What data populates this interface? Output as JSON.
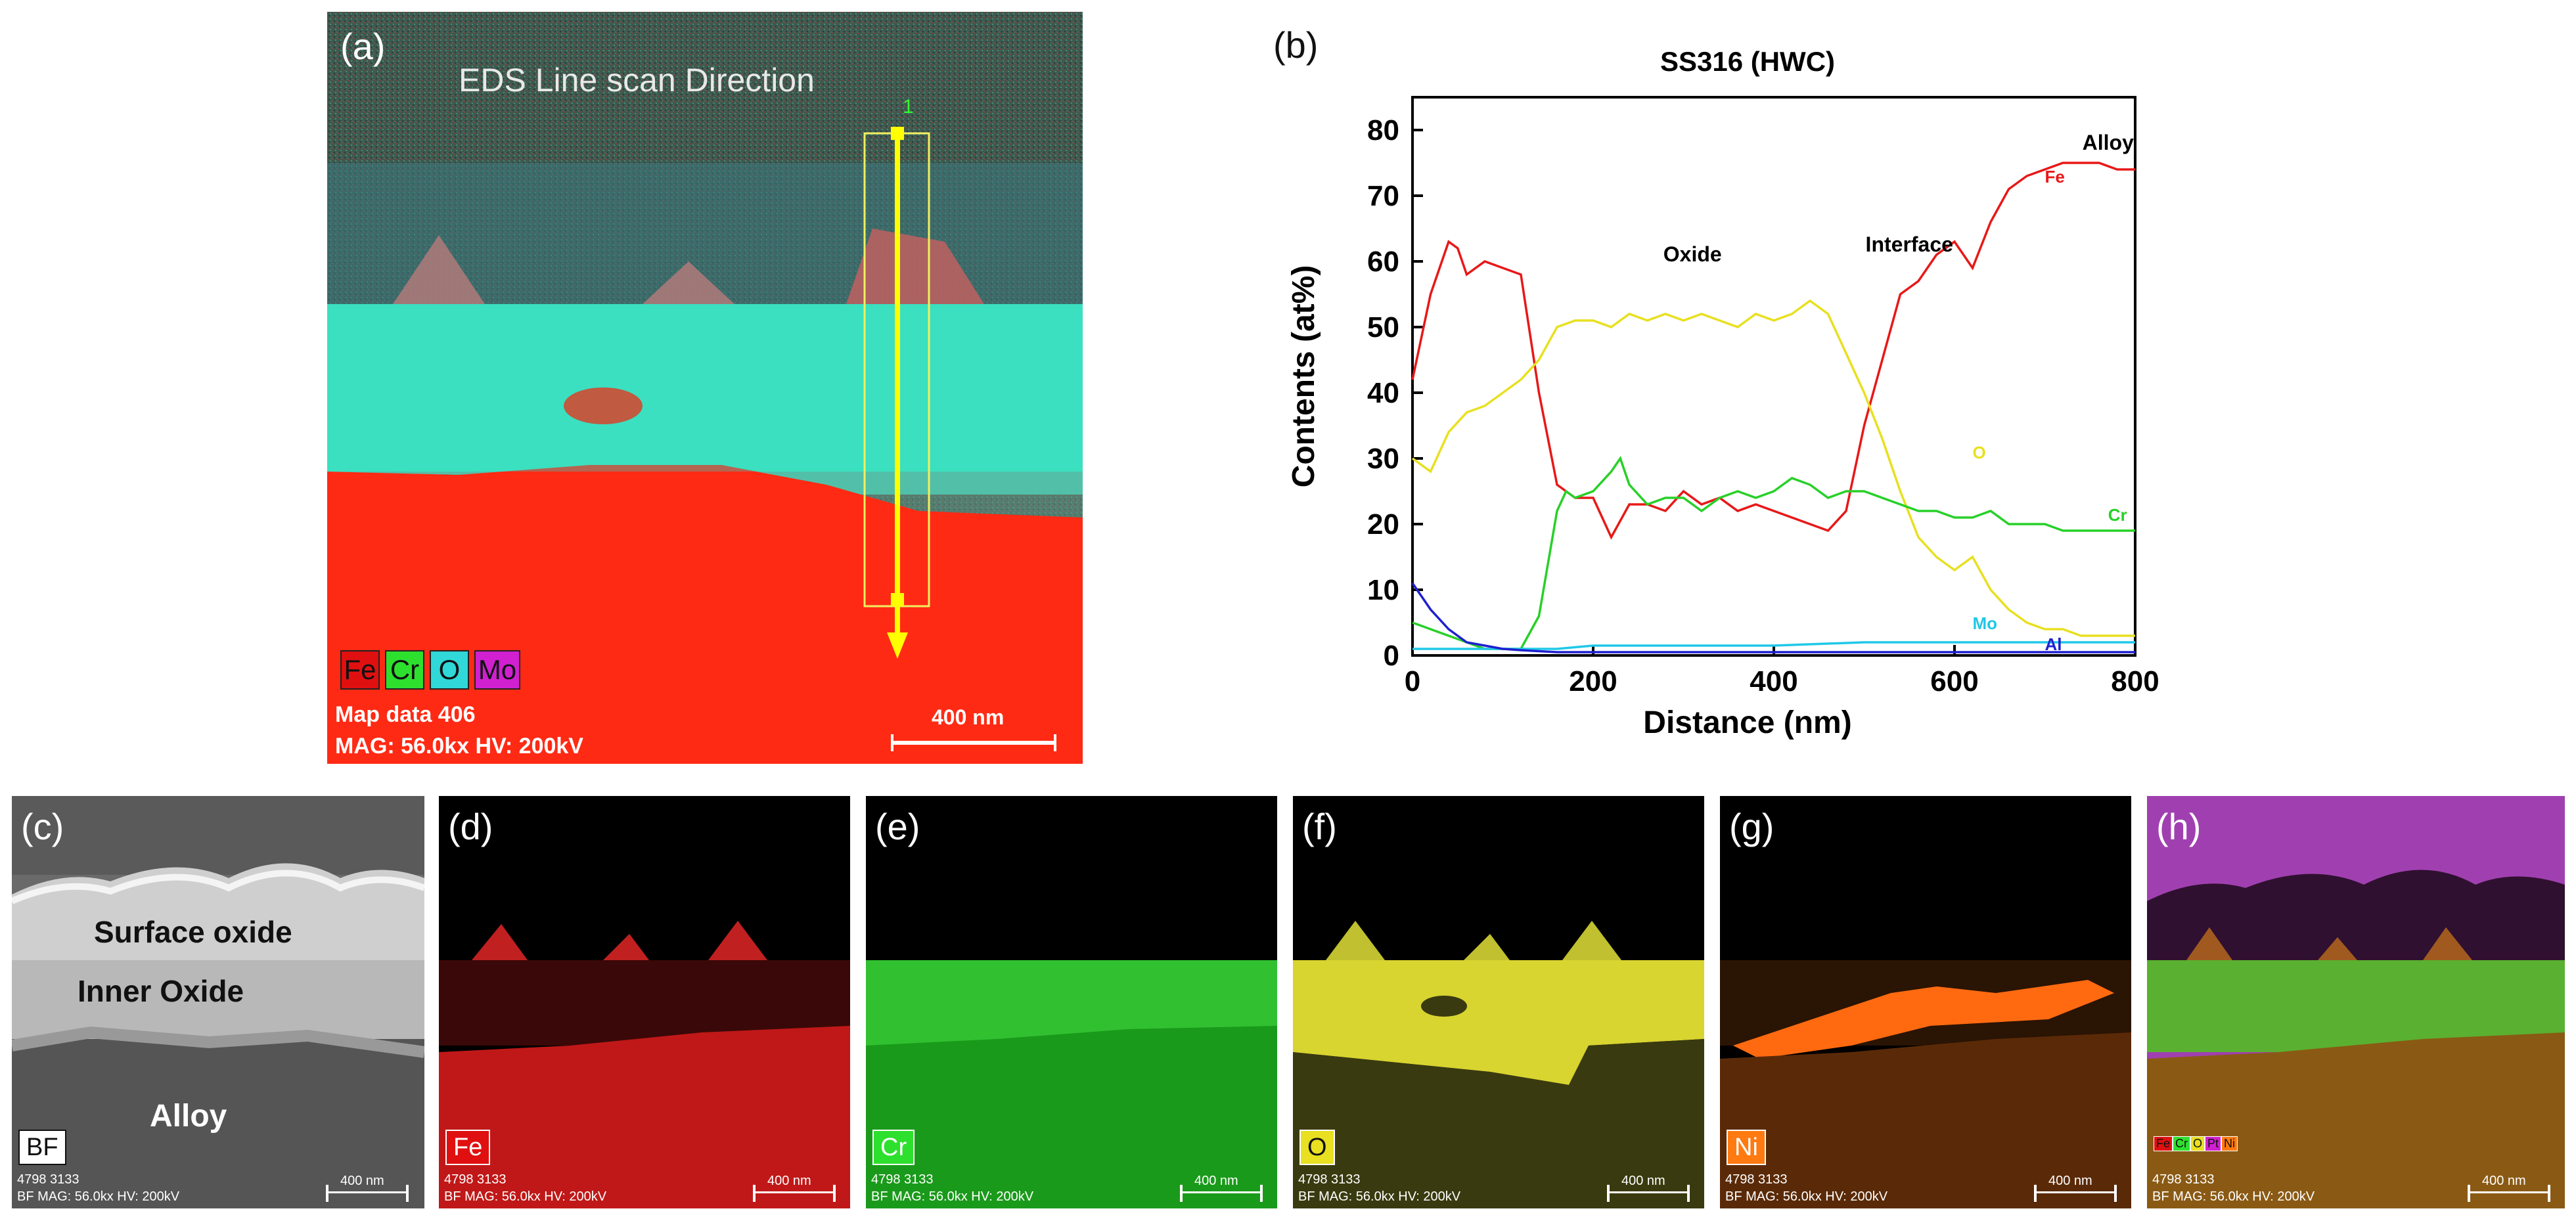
{
  "panel_a": {
    "label": "(a)",
    "title": "EDS Line scan Direction",
    "marker_number": "1",
    "legend": [
      "Fe",
      "Cr",
      "O",
      "Mo"
    ],
    "legend_colors": [
      "#e01010",
      "#2ee02e",
      "#30d8d8",
      "#d020d0"
    ],
    "meta_line1": "Map data 406",
    "meta_line2": "MAG: 56.0kx  HV: 200kV",
    "scale": "400 nm"
  },
  "panel_b": {
    "label": "(b)"
  },
  "chart_data": {
    "type": "line",
    "title": "SS316 (HWC)",
    "xlabel": "Distance (nm)",
    "ylabel": "Contents (at%)",
    "xlim": [
      0,
      800
    ],
    "ylim": [
      0,
      85
    ],
    "xticks": [
      "0",
      "200",
      "400",
      "600",
      "800"
    ],
    "yticks": [
      "0",
      "10",
      "20",
      "30",
      "40",
      "50",
      "60",
      "70",
      "80"
    ],
    "annotations": [
      "Oxide",
      "Interface",
      "Alloy"
    ],
    "series": [
      {
        "name": "Fe",
        "color": "#e81818",
        "x": [
          0,
          20,
          40,
          50,
          60,
          80,
          100,
          120,
          140,
          160,
          180,
          200,
          220,
          240,
          260,
          280,
          300,
          320,
          340,
          360,
          380,
          400,
          420,
          440,
          460,
          480,
          500,
          520,
          540,
          560,
          580,
          600,
          620,
          640,
          660,
          680,
          700,
          720,
          740,
          760,
          780,
          800
        ],
        "y": [
          42,
          55,
          63,
          62,
          58,
          60,
          59,
          58,
          40,
          26,
          24,
          24,
          18,
          23,
          23,
          22,
          25,
          23,
          24,
          22,
          23,
          22,
          21,
          20,
          19,
          22,
          35,
          45,
          55,
          57,
          61,
          63,
          59,
          66,
          71,
          73,
          74,
          75,
          75,
          75,
          74,
          74
        ]
      },
      {
        "name": "O",
        "color": "#e8e020",
        "x": [
          0,
          20,
          40,
          60,
          80,
          100,
          120,
          140,
          160,
          180,
          200,
          220,
          240,
          260,
          280,
          300,
          320,
          340,
          360,
          380,
          400,
          420,
          440,
          460,
          480,
          500,
          520,
          540,
          560,
          580,
          600,
          620,
          640,
          660,
          680,
          700,
          720,
          740,
          760,
          780,
          800
        ],
        "y": [
          30,
          28,
          34,
          37,
          38,
          40,
          42,
          45,
          50,
          51,
          51,
          50,
          52,
          51,
          52,
          51,
          52,
          51,
          50,
          52,
          51,
          52,
          54,
          52,
          46,
          40,
          33,
          25,
          18,
          15,
          13,
          15,
          10,
          7,
          5,
          4,
          4,
          3,
          3,
          3,
          3
        ]
      },
      {
        "name": "Cr",
        "color": "#28d028",
        "x": [
          0,
          20,
          40,
          60,
          80,
          100,
          120,
          140,
          160,
          170,
          180,
          200,
          220,
          230,
          240,
          260,
          280,
          300,
          320,
          340,
          360,
          380,
          400,
          420,
          440,
          460,
          480,
          500,
          520,
          540,
          560,
          580,
          600,
          620,
          640,
          660,
          680,
          700,
          720,
          740,
          760,
          780,
          800
        ],
        "y": [
          5,
          4,
          3,
          2,
          1,
          1,
          1,
          6,
          22,
          25,
          24,
          25,
          28,
          30,
          26,
          23,
          24,
          24,
          22,
          24,
          25,
          24,
          25,
          27,
          26,
          24,
          25,
          25,
          24,
          23,
          22,
          22,
          21,
          21,
          22,
          20,
          20,
          20,
          19,
          19,
          19,
          19,
          19
        ]
      },
      {
        "name": "Mo",
        "color": "#20c8e8",
        "x": [
          0,
          40,
          80,
          120,
          160,
          200,
          300,
          400,
          500,
          600,
          700,
          800
        ],
        "y": [
          1,
          1,
          1,
          1,
          1,
          1.5,
          1.5,
          1.5,
          2,
          2,
          2,
          2
        ]
      },
      {
        "name": "Al",
        "color": "#2020d0",
        "x": [
          0,
          10,
          20,
          40,
          60,
          80,
          100,
          120,
          160,
          200,
          300,
          400,
          500,
          600,
          700,
          800
        ],
        "y": [
          11,
          9,
          7,
          4,
          2,
          1.5,
          1,
          0.8,
          0.5,
          0.5,
          0.5,
          0.5,
          0.5,
          0.5,
          0.5,
          0.5
        ]
      }
    ]
  },
  "panel_c": {
    "label": "(c)",
    "tag": "BF",
    "region_surface": "Surface oxide",
    "region_inner": "Inner Oxide",
    "region_alloy": "Alloy",
    "meta_line1": "4798 3133",
    "meta_line2": "BF  MAG: 56.0kx  HV: 200kV",
    "scale": "400 nm"
  },
  "panel_d": {
    "label": "(d)",
    "tag": "Fe",
    "tag_color": "#e01010",
    "meta_line1": "4798 3133",
    "meta_line2": "BF  MAG: 56.0kx  HV: 200kV",
    "scale": "400 nm"
  },
  "panel_e": {
    "label": "(e)",
    "tag": "Cr",
    "tag_color": "#2ee02e",
    "meta_line1": "4798 3133",
    "meta_line2": "BF  MAG: 56.0kx  HV: 200kV",
    "scale": "400 nm"
  },
  "panel_f": {
    "label": "(f)",
    "tag": "O",
    "tag_color": "#e8e020",
    "meta_line1": "4798 3133",
    "meta_line2": "BF  MAG: 56.0kx  HV: 200kV",
    "scale": "400 nm"
  },
  "panel_g": {
    "label": "(g)",
    "tag": "Ni",
    "tag_color": "#ff7a10",
    "meta_line1": "4798 3133",
    "meta_line2": "BF  MAG: 56.0kx  HV: 200kV",
    "scale": "400 nm"
  },
  "panel_h": {
    "label": "(h)",
    "legend": [
      "Fe",
      "Cr",
      "O",
      "Pt",
      "Ni"
    ],
    "legend_colors": [
      "#e01010",
      "#2ee02e",
      "#e8e020",
      "#d020d0",
      "#ff7a10"
    ],
    "meta_line1": "4798 3133",
    "meta_line2": "BF  MAG: 56.0kx  HV: 200kV",
    "scale": "400 nm"
  }
}
